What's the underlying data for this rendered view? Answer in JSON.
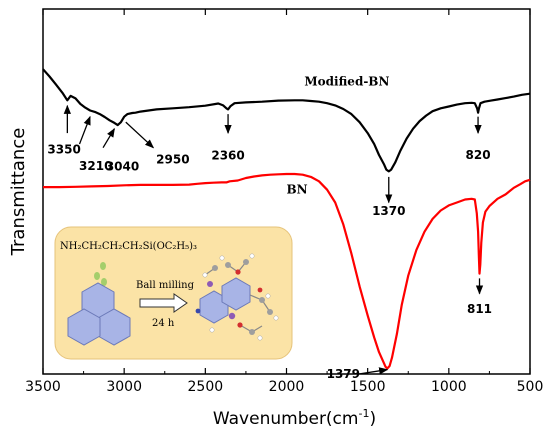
{
  "chart_data": {
    "type": "line",
    "xlabel": "Wavenumber(cm",
    "xlabel_sup": "-1",
    "xlabel_close": ")",
    "ylabel": "Transmittance",
    "xlim": [
      3500,
      500
    ],
    "x_ticks": [
      "3500",
      "3000",
      "2500",
      "2000",
      "1500",
      "1000",
      "500"
    ],
    "y_ticks_shown": false,
    "series": [
      {
        "name": "Modified-BN",
        "color": "#000000",
        "points": [
          [
            3500,
            0.835
          ],
          [
            3460,
            0.815
          ],
          [
            3420,
            0.793
          ],
          [
            3380,
            0.77
          ],
          [
            3350,
            0.75
          ],
          [
            3330,
            0.762
          ],
          [
            3300,
            0.755
          ],
          [
            3270,
            0.74
          ],
          [
            3240,
            0.73
          ],
          [
            3210,
            0.722
          ],
          [
            3180,
            0.718
          ],
          [
            3150,
            0.712
          ],
          [
            3120,
            0.704
          ],
          [
            3090,
            0.695
          ],
          [
            3060,
            0.688
          ],
          [
            3040,
            0.682
          ],
          [
            3020,
            0.69
          ],
          [
            3000,
            0.705
          ],
          [
            2980,
            0.712
          ],
          [
            2950,
            0.715
          ],
          [
            2930,
            0.716
          ],
          [
            2900,
            0.719
          ],
          [
            2850,
            0.722
          ],
          [
            2800,
            0.725
          ],
          [
            2700,
            0.728
          ],
          [
            2600,
            0.731
          ],
          [
            2500,
            0.735
          ],
          [
            2420,
            0.741
          ],
          [
            2390,
            0.736
          ],
          [
            2370,
            0.728
          ],
          [
            2360,
            0.725
          ],
          [
            2345,
            0.734
          ],
          [
            2320,
            0.742
          ],
          [
            2250,
            0.744
          ],
          [
            2150,
            0.746
          ],
          [
            2050,
            0.749
          ],
          [
            1950,
            0.75
          ],
          [
            1900,
            0.75
          ],
          [
            1850,
            0.748
          ],
          [
            1800,
            0.746
          ],
          [
            1750,
            0.742
          ],
          [
            1700,
            0.736
          ],
          [
            1650,
            0.726
          ],
          [
            1600,
            0.712
          ],
          [
            1550,
            0.69
          ],
          [
            1500,
            0.66
          ],
          [
            1460,
            0.63
          ],
          [
            1430,
            0.6
          ],
          [
            1400,
            0.575
          ],
          [
            1385,
            0.56
          ],
          [
            1370,
            0.555
          ],
          [
            1355,
            0.56
          ],
          [
            1330,
            0.58
          ],
          [
            1300,
            0.61
          ],
          [
            1260,
            0.645
          ],
          [
            1220,
            0.672
          ],
          [
            1180,
            0.693
          ],
          [
            1140,
            0.708
          ],
          [
            1100,
            0.72
          ],
          [
            1050,
            0.728
          ],
          [
            1000,
            0.733
          ],
          [
            950,
            0.738
          ],
          [
            900,
            0.742
          ],
          [
            860,
            0.743
          ],
          [
            840,
            0.742
          ],
          [
            825,
            0.727
          ],
          [
            820,
            0.716
          ],
          [
            815,
            0.727
          ],
          [
            805,
            0.742
          ],
          [
            780,
            0.746
          ],
          [
            740,
            0.749
          ],
          [
            700,
            0.752
          ],
          [
            650,
            0.756
          ],
          [
            600,
            0.76
          ],
          [
            550,
            0.765
          ],
          [
            500,
            0.768
          ]
        ]
      },
      {
        "name": "BN",
        "color": "#ff0000",
        "points": [
          [
            3500,
            0.512
          ],
          [
            3400,
            0.512
          ],
          [
            3300,
            0.513
          ],
          [
            3200,
            0.514
          ],
          [
            3100,
            0.515
          ],
          [
            3000,
            0.517
          ],
          [
            2900,
            0.518
          ],
          [
            2800,
            0.518
          ],
          [
            2700,
            0.518
          ],
          [
            2600,
            0.519
          ],
          [
            2550,
            0.521
          ],
          [
            2500,
            0.523
          ],
          [
            2450,
            0.524
          ],
          [
            2400,
            0.525
          ],
          [
            2370,
            0.525
          ],
          [
            2350,
            0.528
          ],
          [
            2300,
            0.53
          ],
          [
            2250,
            0.537
          ],
          [
            2200,
            0.541
          ],
          [
            2150,
            0.544
          ],
          [
            2100,
            0.546
          ],
          [
            2050,
            0.547
          ],
          [
            2000,
            0.548
          ],
          [
            1950,
            0.548
          ],
          [
            1900,
            0.546
          ],
          [
            1850,
            0.54
          ],
          [
            1800,
            0.528
          ],
          [
            1750,
            0.505
          ],
          [
            1700,
            0.47
          ],
          [
            1650,
            0.41
          ],
          [
            1600,
            0.33
          ],
          [
            1550,
            0.24
          ],
          [
            1500,
            0.16
          ],
          [
            1460,
            0.1
          ],
          [
            1430,
            0.06
          ],
          [
            1400,
            0.03
          ],
          [
            1390,
            0.02
          ],
          [
            1379,
            0.015
          ],
          [
            1365,
            0.022
          ],
          [
            1350,
            0.045
          ],
          [
            1320,
            0.11
          ],
          [
            1290,
            0.19
          ],
          [
            1250,
            0.27
          ],
          [
            1200,
            0.34
          ],
          [
            1150,
            0.39
          ],
          [
            1100,
            0.425
          ],
          [
            1050,
            0.448
          ],
          [
            1000,
            0.462
          ],
          [
            950,
            0.47
          ],
          [
            900,
            0.478
          ],
          [
            860,
            0.48
          ],
          [
            840,
            0.478
          ],
          [
            828,
            0.44
          ],
          [
            820,
            0.39
          ],
          [
            815,
            0.32
          ],
          [
            811,
            0.275
          ],
          [
            806,
            0.3
          ],
          [
            800,
            0.36
          ],
          [
            790,
            0.415
          ],
          [
            775,
            0.445
          ],
          [
            750,
            0.46
          ],
          [
            720,
            0.472
          ],
          [
            700,
            0.48
          ],
          [
            650,
            0.492
          ],
          [
            600,
            0.51
          ],
          [
            560,
            0.52
          ],
          [
            530,
            0.528
          ],
          [
            500,
            0.532
          ]
        ]
      }
    ],
    "series_labels": [
      {
        "text": "Modified-BN",
        "x": 1890,
        "y": 0.79
      },
      {
        "text": "BN",
        "x": 2000,
        "y": 0.495
      }
    ],
    "annotations": [
      {
        "text": "3350",
        "tip": [
          3350,
          0.735
        ],
        "tail": [
          3350,
          0.66
        ],
        "label_at": [
          3370,
          0.615
        ]
      },
      {
        "text": "3210",
        "tip": [
          3210,
          0.705
        ],
        "tail": [
          3275,
          0.63
        ],
        "label_at": [
          3175,
          0.57
        ]
      },
      {
        "text": "3040",
        "tip": [
          3060,
          0.672
        ],
        "tail": [
          3130,
          0.62
        ],
        "label_at": [
          3010,
          0.568
        ]
      },
      {
        "text": "2950",
        "tip": [
          2820,
          0.62
        ],
        "tail": [
          2990,
          0.69
        ],
        "label_at": [
          2700,
          0.588
        ]
      },
      {
        "text": "2360",
        "tip": [
          2360,
          0.66
        ],
        "tail": [
          2360,
          0.712
        ],
        "label_at": [
          2360,
          0.598
        ]
      },
      {
        "text": "1370",
        "tip": [
          1370,
          0.47
        ],
        "tail": [
          1370,
          0.54
        ],
        "label_at": [
          1370,
          0.447
        ]
      },
      {
        "text": "820",
        "tip": [
          820,
          0.66
        ],
        "tail": [
          820,
          0.705
        ],
        "label_at": [
          820,
          0.6
        ]
      },
      {
        "text": "811",
        "tip": [
          811,
          0.22
        ],
        "tail": [
          811,
          0.262
        ],
        "label_at": [
          811,
          0.178
        ]
      },
      {
        "text": "1379",
        "tip": [
          1379,
          0.012
        ],
        "tail": [
          1555,
          0.0
        ],
        "label_at": [
          1650,
          0.0
        ]
      }
    ],
    "inset": {
      "formula": "NH₂CH₂CH₂CH₂Si(OC₂H₅)₃",
      "process_label": "Ball milling",
      "time_label": "24 h",
      "background": "#fbe3a6"
    }
  }
}
